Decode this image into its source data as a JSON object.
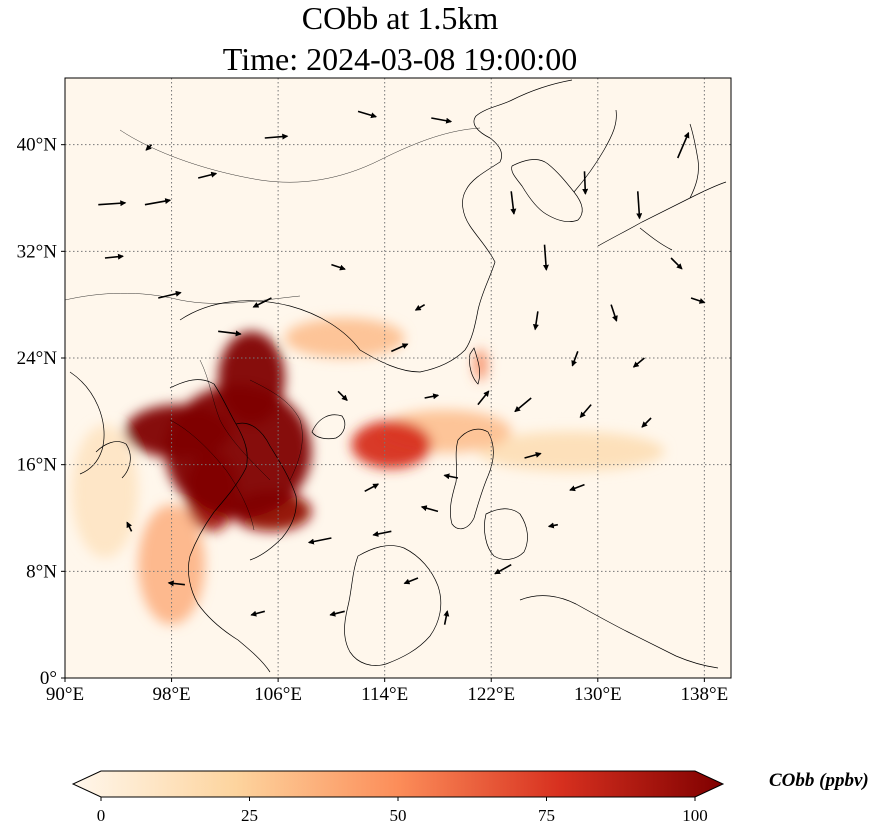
{
  "title": {
    "line1": "CObb at 1.5km",
    "line2": "Time: 2024-03-08 19:00:00"
  },
  "map": {
    "projection": "PlateCarree",
    "lon_range": [
      90,
      140
    ],
    "lat_range": [
      0,
      45
    ],
    "gridlines": "dotted",
    "lon_ticks": [
      {
        "value": 90,
        "label": "90°E"
      },
      {
        "value": 98,
        "label": "98°E"
      },
      {
        "value": 106,
        "label": "106°E"
      },
      {
        "value": 114,
        "label": "114°E"
      },
      {
        "value": 122,
        "label": "122°E"
      },
      {
        "value": 130,
        "label": "130°E"
      },
      {
        "value": 138,
        "label": "138°E"
      }
    ],
    "lat_ticks": [
      {
        "value": 0,
        "label": "0°"
      },
      {
        "value": 8,
        "label": "8°N"
      },
      {
        "value": 16,
        "label": "16°N"
      },
      {
        "value": 24,
        "label": "24°N"
      },
      {
        "value": 32,
        "label": "32°N"
      },
      {
        "value": 40,
        "label": "40°N"
      }
    ],
    "plumes": [
      {
        "lon": 103.0,
        "lat": 17.0,
        "rlon": 5.5,
        "rlat": 5.0,
        "value": 100
      },
      {
        "lon": 98.5,
        "lat": 18.5,
        "rlon": 4.0,
        "rlat": 2.0,
        "value": 100
      },
      {
        "lon": 104.0,
        "lat": 22.5,
        "rlon": 2.5,
        "rlat": 3.5,
        "value": 100
      },
      {
        "lon": 105.5,
        "lat": 12.5,
        "rlon": 3.0,
        "rlat": 1.5,
        "value": 95
      },
      {
        "lon": 101.0,
        "lat": 14.0,
        "rlon": 2.0,
        "rlat": 3.0,
        "value": 90
      },
      {
        "lon": 114.5,
        "lat": 17.5,
        "rlon": 3.0,
        "rlat": 1.8,
        "value": 75
      },
      {
        "lon": 118.5,
        "lat": 18.5,
        "rlon": 5.0,
        "rlat": 1.6,
        "value": 35
      },
      {
        "lon": 128.0,
        "lat": 17.0,
        "rlon": 7.0,
        "rlat": 1.5,
        "value": 20
      },
      {
        "lon": 111.0,
        "lat": 25.5,
        "rlon": 4.5,
        "rlat": 1.5,
        "value": 35
      },
      {
        "lon": 98.0,
        "lat": 8.5,
        "rlon": 2.5,
        "rlat": 4.5,
        "value": 40
      },
      {
        "lon": 121.2,
        "lat": 23.5,
        "rlon": 0.5,
        "rlat": 1.2,
        "value": 55
      },
      {
        "lon": 93.0,
        "lat": 14.0,
        "rlon": 2.5,
        "rlat": 5.0,
        "value": 15
      }
    ],
    "wind_vectors": [
      {
        "lon": 92.5,
        "lat": 35.5,
        "u": 3.0,
        "v": 0.2
      },
      {
        "lon": 96.0,
        "lat": 35.5,
        "u": 2.8,
        "v": 0.5
      },
      {
        "lon": 100.0,
        "lat": 37.5,
        "u": 2.0,
        "v": 0.5
      },
      {
        "lon": 105.0,
        "lat": 40.5,
        "u": 2.5,
        "v": 0.2
      },
      {
        "lon": 112.0,
        "lat": 42.5,
        "u": 2.0,
        "v": -0.6
      },
      {
        "lon": 117.5,
        "lat": 42.0,
        "u": 2.2,
        "v": -0.4
      },
      {
        "lon": 93.0,
        "lat": 31.5,
        "u": 2.0,
        "v": 0.2
      },
      {
        "lon": 97.0,
        "lat": 28.5,
        "u": 2.5,
        "v": 0.6
      },
      {
        "lon": 101.5,
        "lat": 26.0,
        "u": 2.5,
        "v": -0.3
      },
      {
        "lon": 105.5,
        "lat": 28.5,
        "u": -2.0,
        "v": -1.0
      },
      {
        "lon": 110.0,
        "lat": 31.0,
        "u": 1.5,
        "v": -0.5
      },
      {
        "lon": 117.0,
        "lat": 28.0,
        "u": -1.0,
        "v": -0.6
      },
      {
        "lon": 123.5,
        "lat": 36.5,
        "u": 0.3,
        "v": -2.5
      },
      {
        "lon": 126.0,
        "lat": 32.5,
        "u": 0.2,
        "v": -2.8
      },
      {
        "lon": 129.0,
        "lat": 38.0,
        "u": 0.1,
        "v": -2.5
      },
      {
        "lon": 133.0,
        "lat": 36.5,
        "u": 0.2,
        "v": -3.0
      },
      {
        "lon": 136.0,
        "lat": 39.0,
        "u": 1.2,
        "v": 2.8
      },
      {
        "lon": 135.5,
        "lat": 31.5,
        "u": 1.2,
        "v": -1.2
      },
      {
        "lon": 131.0,
        "lat": 28.0,
        "u": 0.6,
        "v": -1.8
      },
      {
        "lon": 137.0,
        "lat": 28.5,
        "u": 1.5,
        "v": -0.5
      },
      {
        "lon": 125.5,
        "lat": 27.5,
        "u": -0.3,
        "v": -2.0
      },
      {
        "lon": 128.5,
        "lat": 24.5,
        "u": -0.6,
        "v": -1.6
      },
      {
        "lon": 133.5,
        "lat": 24.0,
        "u": -1.2,
        "v": -1.0
      },
      {
        "lon": 125.0,
        "lat": 21.0,
        "u": -1.8,
        "v": -1.5
      },
      {
        "lon": 129.5,
        "lat": 20.5,
        "u": -1.2,
        "v": -1.4
      },
      {
        "lon": 134.0,
        "lat": 19.5,
        "u": -1.0,
        "v": -1.0
      },
      {
        "lon": 121.0,
        "lat": 20.5,
        "u": 1.2,
        "v": 1.5
      },
      {
        "lon": 117.0,
        "lat": 21.0,
        "u": 1.5,
        "v": 0.3
      },
      {
        "lon": 124.5,
        "lat": 16.5,
        "u": 1.8,
        "v": 0.5
      },
      {
        "lon": 129.0,
        "lat": 14.5,
        "u": -1.6,
        "v": -0.6
      },
      {
        "lon": 118.0,
        "lat": 12.5,
        "u": -1.8,
        "v": 0.5
      },
      {
        "lon": 114.5,
        "lat": 11.0,
        "u": -2.0,
        "v": -0.4
      },
      {
        "lon": 110.0,
        "lat": 10.5,
        "u": -2.5,
        "v": -0.5
      },
      {
        "lon": 112.5,
        "lat": 14.0,
        "u": 1.5,
        "v": 0.8
      },
      {
        "lon": 123.5,
        "lat": 8.5,
        "u": -1.8,
        "v": -1.0
      },
      {
        "lon": 116.5,
        "lat": 7.5,
        "u": -1.5,
        "v": -0.6
      },
      {
        "lon": 111.0,
        "lat": 5.0,
        "u": -1.6,
        "v": -0.4
      },
      {
        "lon": 105.0,
        "lat": 5.0,
        "u": -1.5,
        "v": -0.4
      },
      {
        "lon": 118.5,
        "lat": 4.0,
        "u": 0.3,
        "v": 1.5
      },
      {
        "lon": 127.0,
        "lat": 11.5,
        "u": -1.0,
        "v": -0.2
      },
      {
        "lon": 99.0,
        "lat": 7.0,
        "u": -1.8,
        "v": 0.2
      },
      {
        "lon": 95.0,
        "lat": 11.0,
        "u": -0.5,
        "v": 1.0
      },
      {
        "lon": 110.5,
        "lat": 21.5,
        "u": 1.0,
        "v": -1.0
      },
      {
        "lon": 119.5,
        "lat": 15.0,
        "u": -1.5,
        "v": 0.3
      },
      {
        "lon": 114.5,
        "lat": 24.5,
        "u": 1.8,
        "v": 0.8
      },
      {
        "lon": 96.5,
        "lat": 40.0,
        "u": -0.6,
        "v": -0.6
      }
    ]
  },
  "colorbar": {
    "label": "CObb (ppbv)",
    "min": 0,
    "max": 100,
    "ticks": [
      {
        "value": 0,
        "label": "0"
      },
      {
        "value": 25,
        "label": "25"
      },
      {
        "value": 50,
        "label": "50"
      },
      {
        "value": 75,
        "label": "75"
      },
      {
        "value": 100,
        "label": "100"
      }
    ],
    "colormap": "OrRd",
    "stops": [
      "#fff7ec",
      "#fdd49e",
      "#fc8d59",
      "#d7301f",
      "#7f0000"
    ]
  }
}
